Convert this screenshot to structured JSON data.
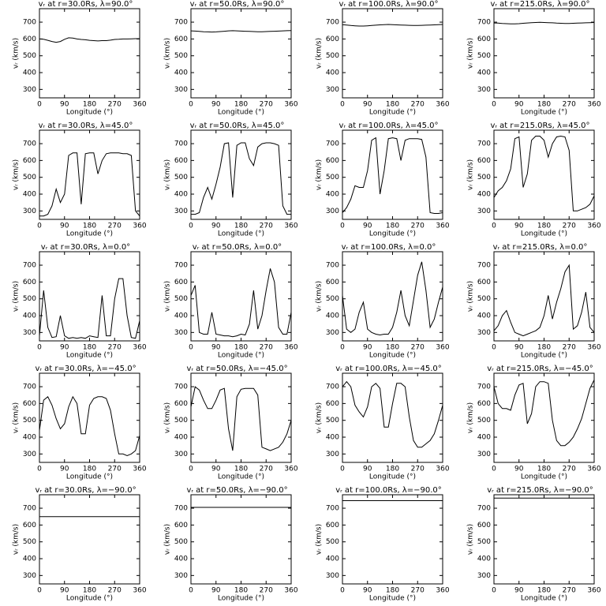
{
  "chart_data": [
    {
      "type": "line",
      "title": "vᵣ at r=30.0Rs, λ=90.0°",
      "xlabel": "Longitude (°)",
      "ylabel": "vᵣ (km/s)",
      "x": [
        0,
        15,
        30,
        45,
        60,
        75,
        90,
        105,
        120,
        135,
        150,
        165,
        180,
        195,
        210,
        225,
        240,
        255,
        270,
        285,
        300,
        315,
        330,
        345,
        360
      ],
      "values": [
        600,
        598,
        592,
        585,
        580,
        585,
        598,
        607,
        605,
        600,
        597,
        595,
        592,
        590,
        588,
        590,
        590,
        593,
        597,
        598,
        600,
        600,
        601,
        602,
        602
      ],
      "xlim": [
        0,
        360
      ],
      "ylim": [
        250,
        780
      ],
      "xticks": [
        0,
        90,
        180,
        270,
        360
      ],
      "yticks": [
        300,
        400,
        500,
        600,
        700
      ]
    },
    {
      "type": "line",
      "title": "vᵣ at r=50.0Rs, λ=90.0°",
      "xlabel": "Longitude (°)",
      "ylabel": "vᵣ (km/s)",
      "x": [
        0,
        15,
        30,
        45,
        60,
        75,
        90,
        105,
        120,
        135,
        150,
        165,
        180,
        195,
        210,
        225,
        240,
        255,
        270,
        285,
        300,
        315,
        330,
        345,
        360
      ],
      "values": [
        648,
        647,
        645,
        643,
        642,
        641,
        642,
        644,
        646,
        648,
        649,
        648,
        647,
        646,
        645,
        644,
        643,
        643,
        644,
        645,
        646,
        647,
        648,
        649,
        650
      ],
      "xlim": [
        0,
        360
      ],
      "ylim": [
        250,
        780
      ],
      "xticks": [
        0,
        90,
        180,
        270,
        360
      ],
      "yticks": [
        300,
        400,
        500,
        600,
        700
      ]
    },
    {
      "type": "line",
      "title": "vᵣ at r=100.0Rs, λ=90.0°",
      "xlabel": "Longitude (°)",
      "ylabel": "vᵣ (km/s)",
      "x": [
        0,
        15,
        30,
        45,
        60,
        75,
        90,
        105,
        120,
        135,
        150,
        165,
        180,
        195,
        210,
        225,
        240,
        255,
        270,
        285,
        300,
        315,
        330,
        345,
        360
      ],
      "values": [
        685,
        683,
        680,
        678,
        677,
        677,
        678,
        680,
        682,
        684,
        685,
        686,
        685,
        684,
        683,
        682,
        681,
        680,
        680,
        681,
        682,
        683,
        684,
        685,
        686
      ],
      "xlim": [
        0,
        360
      ],
      "ylim": [
        250,
        780
      ],
      "xticks": [
        0,
        90,
        180,
        270,
        360
      ],
      "yticks": [
        300,
        400,
        500,
        600,
        700
      ]
    },
    {
      "type": "line",
      "title": "vᵣ at r=215.0Rs, λ=90.0°",
      "xlabel": "Longitude (°)",
      "ylabel": "vᵣ (km/s)",
      "x": [
        0,
        15,
        30,
        45,
        60,
        75,
        90,
        105,
        120,
        135,
        150,
        165,
        180,
        195,
        210,
        225,
        240,
        255,
        270,
        285,
        300,
        315,
        330,
        345,
        360
      ],
      "values": [
        695,
        694,
        692,
        691,
        690,
        690,
        691,
        693,
        695,
        697,
        698,
        699,
        698,
        697,
        696,
        694,
        693,
        692,
        692,
        693,
        694,
        695,
        696,
        697,
        698
      ],
      "xlim": [
        0,
        360
      ],
      "ylim": [
        250,
        780
      ],
      "xticks": [
        0,
        90,
        180,
        270,
        360
      ],
      "yticks": [
        300,
        400,
        500,
        600,
        700
      ]
    },
    {
      "type": "line",
      "title": "vᵣ at r=30.0Rs, λ=45.0°",
      "xlabel": "Longitude (°)",
      "ylabel": "vᵣ (km/s)",
      "x": [
        0,
        15,
        30,
        45,
        60,
        75,
        90,
        105,
        120,
        135,
        150,
        165,
        180,
        195,
        210,
        225,
        240,
        255,
        270,
        285,
        300,
        315,
        330,
        345,
        360
      ],
      "values": [
        270,
        270,
        280,
        330,
        430,
        350,
        400,
        630,
        645,
        645,
        340,
        640,
        645,
        645,
        520,
        600,
        640,
        645,
        645,
        645,
        640,
        640,
        630,
        300,
        270
      ],
      "xlim": [
        0,
        360
      ],
      "ylim": [
        250,
        780
      ],
      "xticks": [
        0,
        90,
        180,
        270,
        360
      ],
      "yticks": [
        300,
        400,
        500,
        600,
        700
      ]
    },
    {
      "type": "line",
      "title": "vᵣ at r=50.0Rs, λ=45.0°",
      "xlabel": "Longitude (°)",
      "ylabel": "vᵣ (km/s)",
      "x": [
        0,
        15,
        30,
        45,
        60,
        75,
        90,
        105,
        120,
        135,
        150,
        165,
        180,
        195,
        210,
        225,
        240,
        255,
        270,
        285,
        300,
        315,
        330,
        345,
        360
      ],
      "values": [
        280,
        280,
        290,
        380,
        440,
        370,
        460,
        560,
        700,
        705,
        380,
        690,
        705,
        705,
        610,
        570,
        680,
        700,
        705,
        705,
        700,
        690,
        330,
        280,
        280
      ],
      "xlim": [
        0,
        360
      ],
      "ylim": [
        250,
        780
      ],
      "xticks": [
        0,
        90,
        180,
        270,
        360
      ],
      "yticks": [
        300,
        400,
        500,
        600,
        700
      ]
    },
    {
      "type": "line",
      "title": "vᵣ at r=100.0Rs, λ=45.0°",
      "xlabel": "Longitude (°)",
      "ylabel": "vᵣ (km/s)",
      "x": [
        0,
        15,
        30,
        45,
        60,
        75,
        90,
        105,
        120,
        135,
        150,
        165,
        180,
        195,
        210,
        225,
        240,
        255,
        270,
        285,
        300,
        315,
        330,
        345,
        360
      ],
      "values": [
        290,
        320,
        370,
        450,
        440,
        440,
        540,
        720,
        735,
        400,
        540,
        730,
        735,
        730,
        600,
        720,
        730,
        730,
        730,
        725,
        620,
        290,
        285,
        285,
        290
      ],
      "xlim": [
        0,
        360
      ],
      "ylim": [
        250,
        780
      ],
      "xticks": [
        0,
        90,
        180,
        270,
        360
      ],
      "yticks": [
        300,
        400,
        500,
        600,
        700
      ]
    },
    {
      "type": "line",
      "title": "vᵣ at r=215.0Rs, λ=45.0°",
      "xlabel": "Longitude (°)",
      "ylabel": "vᵣ (km/s)",
      "x": [
        0,
        15,
        30,
        45,
        60,
        75,
        90,
        105,
        120,
        135,
        150,
        165,
        180,
        195,
        210,
        225,
        240,
        255,
        270,
        285,
        300,
        315,
        330,
        345,
        360
      ],
      "values": [
        380,
        420,
        440,
        480,
        550,
        730,
        740,
        440,
        520,
        720,
        745,
        745,
        720,
        620,
        700,
        740,
        745,
        740,
        660,
        300,
        300,
        310,
        320,
        340,
        390
      ],
      "xlim": [
        0,
        360
      ],
      "ylim": [
        250,
        780
      ],
      "xticks": [
        0,
        90,
        180,
        270,
        360
      ],
      "yticks": [
        300,
        400,
        500,
        600,
        700
      ]
    },
    {
      "type": "line",
      "title": "vᵣ at r=30.0Rs, λ=0.0°",
      "xlabel": "Longitude (°)",
      "ylabel": "vᵣ (km/s)",
      "x": [
        0,
        15,
        30,
        45,
        60,
        75,
        90,
        105,
        120,
        135,
        150,
        165,
        180,
        195,
        210,
        225,
        240,
        255,
        270,
        285,
        300,
        315,
        330,
        345,
        360
      ],
      "values": [
        280,
        550,
        330,
        270,
        275,
        400,
        280,
        265,
        270,
        265,
        270,
        265,
        280,
        275,
        270,
        520,
        280,
        280,
        500,
        620,
        620,
        400,
        270,
        265,
        370
      ],
      "xlim": [
        0,
        360
      ],
      "ylim": [
        250,
        780
      ],
      "xticks": [
        0,
        90,
        180,
        270,
        360
      ],
      "yticks": [
        300,
        400,
        500,
        600,
        700
      ]
    },
    {
      "type": "line",
      "title": "vᵣ at r=50.0Rs, λ=0.0°",
      "xlabel": "Longitude (°)",
      "ylabel": "vᵣ (km/s)",
      "x": [
        0,
        15,
        30,
        45,
        60,
        75,
        90,
        105,
        120,
        135,
        150,
        165,
        180,
        195,
        210,
        225,
        240,
        255,
        270,
        285,
        300,
        315,
        330,
        345,
        360
      ],
      "values": [
        520,
        580,
        300,
        290,
        290,
        420,
        290,
        285,
        280,
        280,
        275,
        280,
        290,
        285,
        350,
        550,
        320,
        400,
        550,
        680,
        600,
        330,
        290,
        290,
        420
      ],
      "xlim": [
        0,
        360
      ],
      "ylim": [
        250,
        780
      ],
      "xticks": [
        0,
        90,
        180,
        270,
        360
      ],
      "yticks": [
        300,
        400,
        500,
        600,
        700
      ]
    },
    {
      "type": "line",
      "title": "vᵣ at r=100.0Rs, λ=0.0°",
      "xlabel": "Longitude (°)",
      "ylabel": "vᵣ (km/s)",
      "x": [
        0,
        15,
        30,
        45,
        60,
        75,
        90,
        105,
        120,
        135,
        150,
        165,
        180,
        195,
        210,
        225,
        240,
        255,
        270,
        285,
        300,
        315,
        330,
        345,
        360
      ],
      "values": [
        520,
        320,
        300,
        320,
        420,
        480,
        320,
        300,
        290,
        285,
        290,
        290,
        330,
        420,
        550,
        400,
        340,
        490,
        640,
        720,
        550,
        330,
        380,
        480,
        570
      ],
      "xlim": [
        0,
        360
      ],
      "ylim": [
        250,
        780
      ],
      "xticks": [
        0,
        90,
        180,
        270,
        360
      ],
      "yticks": [
        300,
        400,
        500,
        600,
        700
      ]
    },
    {
      "type": "line",
      "title": "vᵣ at r=215.0Rs, λ=0.0°",
      "xlabel": "Longitude (°)",
      "ylabel": "vᵣ (km/s)",
      "x": [
        0,
        15,
        30,
        45,
        60,
        75,
        90,
        105,
        120,
        135,
        150,
        165,
        180,
        195,
        210,
        225,
        240,
        255,
        270,
        285,
        300,
        315,
        330,
        345,
        360
      ],
      "values": [
        310,
        340,
        400,
        430,
        360,
        300,
        290,
        280,
        290,
        300,
        310,
        330,
        400,
        520,
        380,
        480,
        560,
        660,
        700,
        320,
        340,
        420,
        540,
        330,
        300
      ],
      "xlim": [
        0,
        360
      ],
      "ylim": [
        250,
        780
      ],
      "xticks": [
        0,
        90,
        180,
        270,
        360
      ],
      "yticks": [
        300,
        400,
        500,
        600,
        700
      ]
    },
    {
      "type": "line",
      "title": "vᵣ at r=30.0Rs, λ=−45.0°",
      "xlabel": "Longitude (°)",
      "ylabel": "vᵣ (km/s)",
      "x": [
        0,
        15,
        30,
        45,
        60,
        75,
        90,
        105,
        120,
        135,
        150,
        165,
        180,
        195,
        210,
        225,
        240,
        255,
        270,
        285,
        300,
        315,
        330,
        345,
        360
      ],
      "values": [
        440,
        620,
        640,
        590,
        510,
        450,
        480,
        580,
        640,
        600,
        420,
        420,
        590,
        630,
        640,
        640,
        630,
        560,
        420,
        300,
        300,
        290,
        300,
        320,
        410
      ],
      "xlim": [
        0,
        360
      ],
      "ylim": [
        250,
        780
      ],
      "xticks": [
        0,
        90,
        180,
        270,
        360
      ],
      "yticks": [
        300,
        400,
        500,
        600,
        700
      ]
    },
    {
      "type": "line",
      "title": "vᵣ at r=50.0Rs, λ=−45.0°",
      "xlabel": "Longitude (°)",
      "ylabel": "vᵣ (km/s)",
      "x": [
        0,
        15,
        30,
        45,
        60,
        75,
        90,
        105,
        120,
        135,
        150,
        165,
        180,
        195,
        210,
        225,
        240,
        255,
        270,
        285,
        300,
        315,
        330,
        345,
        360
      ],
      "values": [
        580,
        700,
        680,
        620,
        570,
        570,
        620,
        680,
        690,
        450,
        320,
        640,
        685,
        690,
        690,
        690,
        650,
        340,
        330,
        320,
        330,
        340,
        370,
        420,
        500
      ],
      "xlim": [
        0,
        360
      ],
      "ylim": [
        250,
        780
      ],
      "xticks": [
        0,
        90,
        180,
        270,
        360
      ],
      "yticks": [
        300,
        400,
        500,
        600,
        700
      ]
    },
    {
      "type": "line",
      "title": "vᵣ at r=100.0Rs, λ=−45.0°",
      "xlabel": "Longitude (°)",
      "ylabel": "vᵣ (km/s)",
      "x": [
        0,
        15,
        30,
        45,
        60,
        75,
        90,
        105,
        120,
        135,
        150,
        165,
        180,
        195,
        210,
        225,
        240,
        255,
        270,
        285,
        300,
        315,
        330,
        345,
        360
      ],
      "values": [
        700,
        730,
        700,
        590,
        550,
        520,
        580,
        700,
        720,
        690,
        460,
        460,
        600,
        720,
        720,
        700,
        520,
        380,
        340,
        340,
        360,
        380,
        420,
        500,
        590
      ],
      "xlim": [
        0,
        360
      ],
      "ylim": [
        250,
        780
      ],
      "xticks": [
        0,
        90,
        180,
        270,
        360
      ],
      "yticks": [
        300,
        400,
        500,
        600,
        700
      ]
    },
    {
      "type": "line",
      "title": "vᵣ at r=215.0Rs, λ=−45.0°",
      "xlabel": "Longitude (°)",
      "ylabel": "vᵣ (km/s)",
      "x": [
        0,
        15,
        30,
        45,
        60,
        75,
        90,
        105,
        120,
        135,
        150,
        165,
        180,
        195,
        210,
        225,
        240,
        255,
        270,
        285,
        300,
        315,
        330,
        345,
        360
      ],
      "values": [
        700,
        600,
        570,
        570,
        560,
        650,
        710,
        720,
        480,
        540,
        700,
        730,
        730,
        720,
        500,
        380,
        350,
        350,
        370,
        400,
        450,
        510,
        600,
        690,
        740
      ],
      "xlim": [
        0,
        360
      ],
      "ylim": [
        250,
        780
      ],
      "xticks": [
        0,
        90,
        180,
        270,
        360
      ],
      "yticks": [
        300,
        400,
        500,
        600,
        700
      ]
    },
    {
      "type": "line",
      "title": "vᵣ at r=30.0Rs, λ=−90.0°",
      "xlabel": "Longitude (°)",
      "ylabel": "vᵣ (km/s)",
      "x": [
        0,
        360
      ],
      "values": [
        650,
        650
      ],
      "xlim": [
        0,
        360
      ],
      "ylim": [
        250,
        780
      ],
      "xticks": [
        0,
        90,
        180,
        270,
        360
      ],
      "yticks": [
        300,
        400,
        500,
        600,
        700
      ]
    },
    {
      "type": "line",
      "title": "vᵣ at r=50.0Rs, λ=−90.0°",
      "xlabel": "Longitude (°)",
      "ylabel": "vᵣ (km/s)",
      "x": [
        0,
        360
      ],
      "values": [
        705,
        705
      ],
      "xlim": [
        0,
        360
      ],
      "ylim": [
        250,
        780
      ],
      "xticks": [
        0,
        90,
        180,
        270,
        360
      ],
      "yticks": [
        300,
        400,
        500,
        600,
        700
      ]
    },
    {
      "type": "line",
      "title": "vᵣ at r=100.0Rs, λ=−90.0°",
      "xlabel": "Longitude (°)",
      "ylabel": "vᵣ (km/s)",
      "x": [
        0,
        360
      ],
      "values": [
        745,
        745
      ],
      "xlim": [
        0,
        360
      ],
      "ylim": [
        250,
        780
      ],
      "xticks": [
        0,
        90,
        180,
        270,
        360
      ],
      "yticks": [
        300,
        400,
        500,
        600,
        700
      ]
    },
    {
      "type": "line",
      "title": "vᵣ at r=215.0Rs, λ=−90.0°",
      "xlabel": "Longitude (°)",
      "ylabel": "vᵣ (km/s)",
      "x": [
        0,
        360
      ],
      "values": [
        760,
        760
      ],
      "xlim": [
        0,
        360
      ],
      "ylim": [
        250,
        780
      ],
      "xticks": [
        0,
        90,
        180,
        270,
        360
      ],
      "yticks": [
        300,
        400,
        500,
        600,
        700
      ]
    }
  ]
}
